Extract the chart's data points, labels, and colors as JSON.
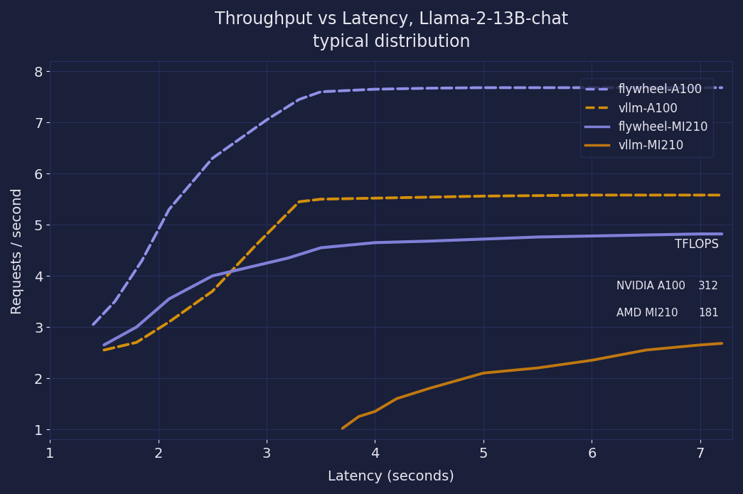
{
  "title": "Throughput vs Latency, Llama-2-13B-chat\ntypical distribution",
  "xlabel": "Latency (seconds)",
  "ylabel": "Requests / second",
  "background_color": "#1a1f3a",
  "axes_color": "#1e2444",
  "grid_color": "#2a3060",
  "text_color": "#e8e8f0",
  "xlim": [
    1,
    7.3
  ],
  "ylim": [
    0.8,
    8.2
  ],
  "xticks": [
    1,
    2,
    3,
    4,
    5,
    6,
    7
  ],
  "yticks": [
    1,
    2,
    3,
    4,
    5,
    6,
    7,
    8
  ],
  "series": {
    "flywheel_A100": {
      "x": [
        1.4,
        1.6,
        1.85,
        2.1,
        2.5,
        3.0,
        3.3,
        3.5,
        4.0,
        4.5,
        5.0,
        5.5,
        6.0,
        6.5,
        7.0,
        7.2
      ],
      "y": [
        3.05,
        3.5,
        4.3,
        5.3,
        6.3,
        7.05,
        7.45,
        7.6,
        7.65,
        7.67,
        7.68,
        7.68,
        7.68,
        7.68,
        7.68,
        7.68
      ],
      "color": "#9090e8",
      "linestyle": "dashed",
      "linewidth": 2.8,
      "label": "flywheel-A100"
    },
    "vllm_A100": {
      "x": [
        1.5,
        1.8,
        2.1,
        2.5,
        2.9,
        3.3,
        3.5,
        4.0,
        4.5,
        5.0,
        5.5,
        6.0,
        6.5,
        7.0,
        7.2
      ],
      "y": [
        2.55,
        2.7,
        3.1,
        3.7,
        4.6,
        5.45,
        5.5,
        5.52,
        5.54,
        5.56,
        5.57,
        5.58,
        5.58,
        5.58,
        5.58
      ],
      "color": "#d4900a",
      "linestyle": "dashed",
      "linewidth": 2.8,
      "label": "vllm-A100"
    },
    "flywheel_MI210": {
      "x": [
        1.5,
        1.8,
        2.1,
        2.5,
        2.9,
        3.2,
        3.5,
        4.0,
        4.5,
        5.0,
        5.5,
        6.0,
        6.5,
        7.0,
        7.2
      ],
      "y": [
        2.65,
        3.0,
        3.55,
        4.0,
        4.2,
        4.35,
        4.55,
        4.65,
        4.68,
        4.72,
        4.76,
        4.78,
        4.8,
        4.82,
        4.82
      ],
      "color": "#8080d8",
      "linestyle": "solid",
      "linewidth": 3.0,
      "label": "flywheel-MI210"
    },
    "vllm_MI210": {
      "x": [
        3.7,
        3.85,
        4.0,
        4.2,
        4.5,
        5.0,
        5.5,
        6.0,
        6.5,
        7.0,
        7.2
      ],
      "y": [
        1.02,
        1.25,
        1.35,
        1.6,
        1.8,
        2.1,
        2.2,
        2.35,
        2.55,
        2.65,
        2.68
      ],
      "color": "#c07810",
      "linestyle": "solid",
      "linewidth": 2.8,
      "label": "vllm-MI210"
    }
  },
  "tflops_table": {
    "title": "TFLOPS",
    "rows": [
      {
        "label": "NVIDIA A100",
        "value": "312"
      },
      {
        "label": "AMD MI210",
        "value": "181"
      }
    ]
  },
  "legend_loc": "upper right"
}
